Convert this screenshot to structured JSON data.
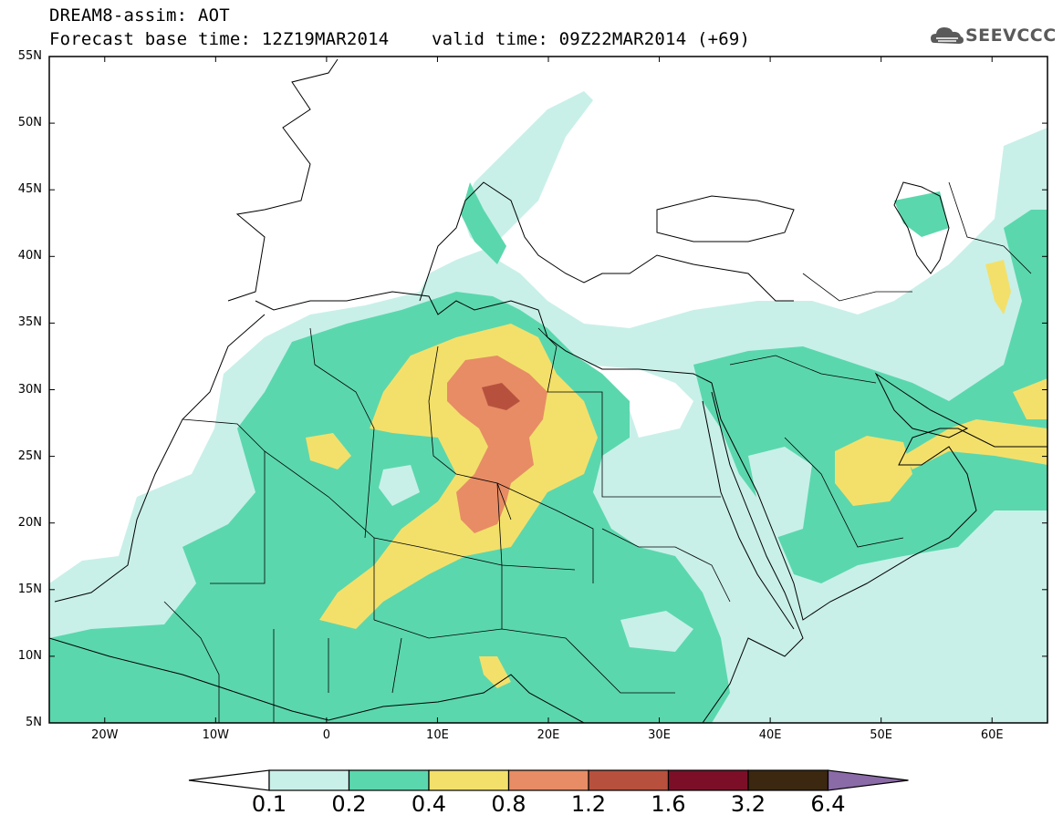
{
  "title": {
    "line1": "DREAM8-assim: AOT",
    "line2": "Forecast base time: 12Z19MAR2014    valid time: 09Z22MAR2014 (+69)"
  },
  "logo": {
    "text": "SEEVCCC",
    "icon": "cloud-icon"
  },
  "map": {
    "variable": "AOT",
    "lon_range": [
      -25,
      65
    ],
    "lat_range": [
      5,
      55
    ],
    "lat_ticks": [
      "55N",
      "50N",
      "45N",
      "40N",
      "35N",
      "30N",
      "25N",
      "20N",
      "15N",
      "10N",
      "5N"
    ],
    "lon_ticks": [
      "20W",
      "10W",
      "0",
      "10E",
      "20E",
      "30E",
      "40E",
      "50E",
      "60E"
    ]
  },
  "colorbar": {
    "labels": [
      "0.1",
      "0.2",
      "0.4",
      "0.8",
      "1.2",
      "1.6",
      "3.2",
      "6.4"
    ],
    "colors": [
      "#c8f0e8",
      "#5bd7ad",
      "#f3e06b",
      "#e78c65",
      "#b7513e",
      "#7c0f27",
      "#3c2810",
      "#8b6aa8"
    ]
  }
}
